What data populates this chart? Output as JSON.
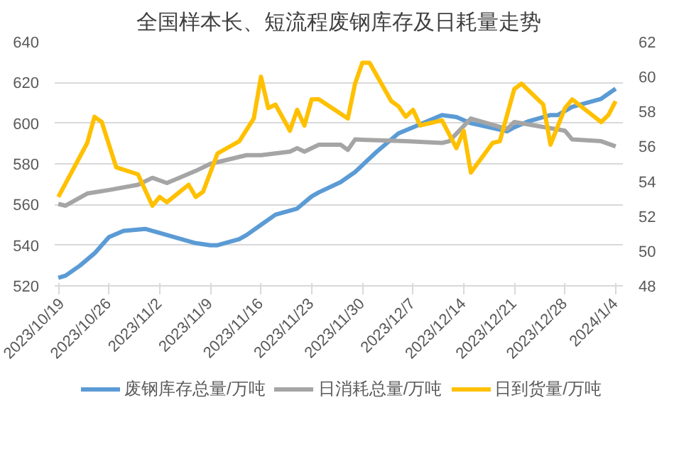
{
  "chart_data": {
    "type": "line",
    "title": "全国样本长、短流程废钢库存及日耗量走势",
    "xlim": [
      "2023-10-18T12:00",
      "2024-01-05"
    ],
    "xticks": [
      {
        "value": "2023-10-19",
        "label": "2023/10/19"
      },
      {
        "value": "2023-10-26",
        "label": "2023/10/26"
      },
      {
        "value": "2023-11-02",
        "label": "2023/11/2"
      },
      {
        "value": "2023-11-09",
        "label": "2023/11/9"
      },
      {
        "value": "2023-11-16",
        "label": "2023/11/16"
      },
      {
        "value": "2023-11-23",
        "label": "2023/11/23"
      },
      {
        "value": "2023-11-30",
        "label": "2023/11/30"
      },
      {
        "value": "2023-12-07",
        "label": "2023/12/7"
      },
      {
        "value": "2023-12-14",
        "label": "2023/12/14"
      },
      {
        "value": "2023-12-21",
        "label": "2023/12/21"
      },
      {
        "value": "2023-12-28",
        "label": "2023/12/28"
      },
      {
        "value": "2024-01-04",
        "label": "2024/1/4"
      }
    ],
    "ylim": [
      520,
      640
    ],
    "yticks": [
      520,
      540,
      560,
      580,
      600,
      620,
      640
    ],
    "y2lim": [
      48,
      62
    ],
    "y2ticks": [
      48,
      50,
      52,
      54,
      56,
      58,
      60,
      62
    ],
    "grid": "y",
    "legend": "bottom",
    "line_style": "solid",
    "marker": "none",
    "series": [
      {
        "name": "废钢库存总量/万吨",
        "color": "#5b9bd5",
        "x": [
          "2023-10-19",
          "2023-10-20",
          "2023-10-22",
          "2023-10-24",
          "2023-10-26",
          "2023-10-28",
          "2023-10-31",
          "2023-11-02",
          "2023-11-05",
          "2023-11-07",
          "2023-11-09",
          "2023-11-10",
          "2023-11-13",
          "2023-11-14",
          "2023-11-16",
          "2023-11-18",
          "2023-11-21",
          "2023-11-23",
          "2023-11-24",
          "2023-11-27",
          "2023-11-29",
          "2023-12-02",
          "2023-12-05",
          "2023-12-07",
          "2023-12-11",
          "2023-12-13",
          "2023-12-15",
          "2023-12-20",
          "2023-12-21",
          "2023-12-23",
          "2023-12-26",
          "2023-12-27",
          "2023-12-29",
          "2024-01-02",
          "2024-01-04"
        ],
        "values": [
          524,
          525,
          530,
          536,
          544,
          547,
          548,
          546,
          543,
          541,
          540,
          540,
          543,
          545,
          550,
          555,
          558,
          564,
          566,
          571,
          576,
          586,
          595,
          598,
          604,
          603,
          600,
          596,
          598,
          601,
          604,
          604,
          608,
          612,
          617
        ]
      },
      {
        "name": "日消耗总量/万吨",
        "color": "#a5a5a5",
        "axis": "y2",
        "x": [
          "2023-10-19",
          "2023-10-20",
          "2023-10-23",
          "2023-10-26",
          "2023-10-30",
          "2023-11-01",
          "2023-11-03",
          "2023-11-07",
          "2023-11-09",
          "2023-11-14",
          "2023-11-16",
          "2023-11-20",
          "2023-11-21",
          "2023-11-22",
          "2023-11-24",
          "2023-11-27",
          "2023-11-28",
          "2023-11-29",
          "2023-12-06",
          "2023-12-11",
          "2023-12-12",
          "2023-12-15",
          "2023-12-20",
          "2023-12-21",
          "2023-12-28",
          "2023-12-29",
          "2024-01-02",
          "2024-01-04"
        ],
        "values": [
          52.7,
          52.6,
          53.3,
          53.5,
          53.8,
          54.2,
          53.9,
          54.6,
          55.0,
          55.5,
          55.5,
          55.7,
          55.9,
          55.7,
          56.1,
          56.1,
          55.8,
          56.4,
          56.3,
          56.2,
          56.3,
          57.6,
          57.0,
          57.4,
          56.9,
          56.4,
          56.3,
          56.0
        ]
      },
      {
        "name": "日到货量/万吨",
        "color": "#ffc000",
        "axis": "y2",
        "x": [
          "2023-10-19",
          "2023-10-23",
          "2023-10-24",
          "2023-10-25",
          "2023-10-27",
          "2023-10-30",
          "2023-11-01",
          "2023-11-02",
          "2023-11-03",
          "2023-11-06",
          "2023-11-07",
          "2023-11-08",
          "2023-11-10",
          "2023-11-13",
          "2023-11-15",
          "2023-11-16",
          "2023-11-17",
          "2023-11-18",
          "2023-11-20",
          "2023-11-21",
          "2023-11-22",
          "2023-11-23",
          "2023-11-24",
          "2023-11-28",
          "2023-11-29",
          "2023-11-30",
          "2023-12-01",
          "2023-12-04",
          "2023-12-05",
          "2023-12-06",
          "2023-12-07",
          "2023-12-08",
          "2023-12-11",
          "2023-12-13",
          "2023-12-14",
          "2023-12-15",
          "2023-12-18",
          "2023-12-19",
          "2023-12-21",
          "2023-12-22",
          "2023-12-25",
          "2023-12-26",
          "2023-12-28",
          "2023-12-29",
          "2024-01-02",
          "2024-01-03",
          "2024-01-04"
        ],
        "values": [
          53.1,
          56.2,
          57.7,
          57.4,
          54.8,
          54.4,
          52.6,
          53.1,
          52.8,
          53.8,
          53.1,
          53.4,
          55.6,
          56.3,
          57.6,
          60.0,
          58.2,
          58.4,
          56.9,
          58.1,
          57.2,
          58.7,
          58.7,
          57.6,
          59.6,
          60.8,
          60.8,
          58.6,
          58.3,
          57.7,
          58.1,
          57.2,
          57.5,
          55.9,
          56.9,
          54.5,
          56.2,
          56.3,
          59.3,
          59.6,
          58.4,
          56.1,
          58.2,
          58.7,
          57.4,
          57.8,
          58.6
        ]
      }
    ]
  }
}
